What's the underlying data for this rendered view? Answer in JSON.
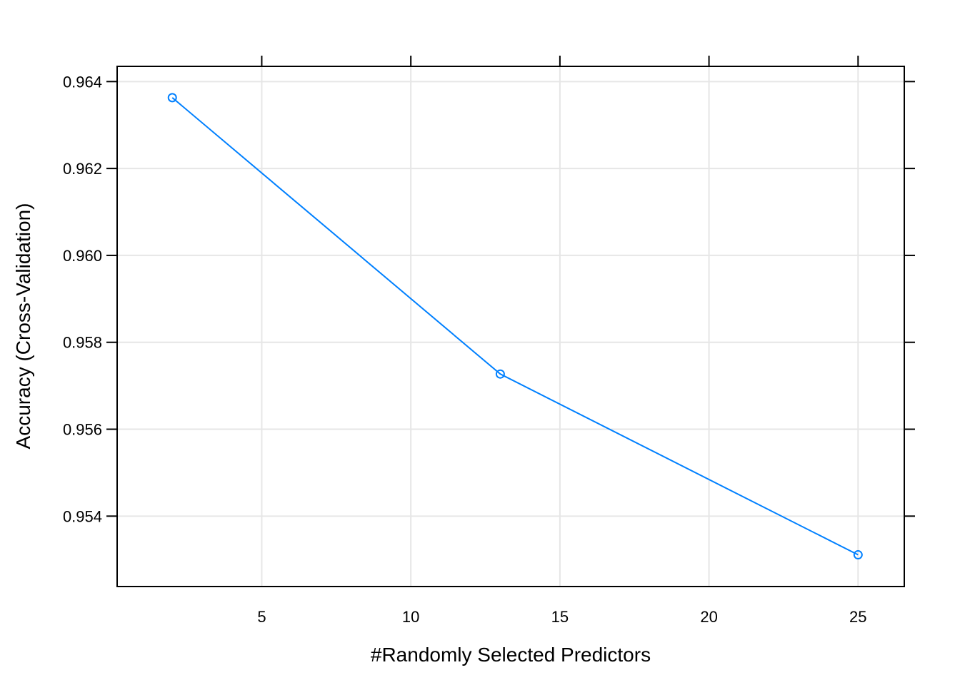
{
  "chart_data": {
    "type": "line",
    "title": "",
    "xlabel": "#Randomly Selected Predictors",
    "ylabel": "Accuracy (Cross-Validation)",
    "xlim": [
      0.15,
      26.55
    ],
    "ylim": [
      0.95238,
      0.96435
    ],
    "x_ticks": [
      5,
      10,
      15,
      20,
      25
    ],
    "x_tick_labels": [
      "5",
      "10",
      "15",
      "20",
      "25"
    ],
    "y_ticks": [
      0.954,
      0.956,
      0.958,
      0.96,
      0.962,
      0.964
    ],
    "y_tick_labels": [
      "0.954",
      "0.956",
      "0.958",
      "0.960",
      "0.962",
      "0.964"
    ],
    "grid": true,
    "series": [
      {
        "x": [
          2,
          13,
          25
        ],
        "y": [
          0.96363,
          0.95727,
          0.95311
        ],
        "color": "#0080ff",
        "marker": "open-circle"
      }
    ],
    "grid_color": "#e6e6e6"
  }
}
